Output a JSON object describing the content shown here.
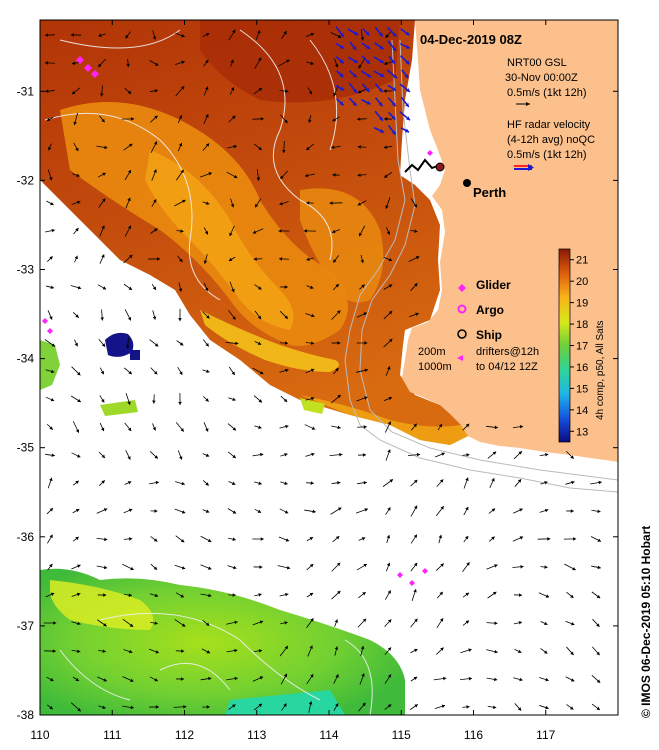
{
  "title": "04-Dec-2019 08Z",
  "gsl_legend": {
    "line1": "NRT00 GSL",
    "line2": "30-Nov 00:00Z",
    "line3": "0.5m/s (1kt 12h)"
  },
  "hf_legend": {
    "line1": "HF radar velocity",
    "line2": "(4-12h avg) noQC",
    "line3": "0.5m/s (1kt 12h)"
  },
  "city_label": "Perth",
  "symbol_legend": {
    "glider": "Glider",
    "argo": "Argo",
    "ship": "Ship",
    "drifters_line1": "drifters@12h",
    "drifters_line2": "to 04/12 12Z"
  },
  "contour_labels": {
    "c200": "200m",
    "c1000": "1000m"
  },
  "colorbar": {
    "title": "4h comp, p50, All Sats",
    "min": 12.5,
    "max": 21.5,
    "ticks": [
      13,
      14,
      15,
      16,
      17,
      18,
      19,
      20,
      21
    ]
  },
  "axes": {
    "lon_min": 110,
    "lon_max": 118,
    "lat_min": -38,
    "lat_max": -30.2,
    "lon_ticks": [
      110,
      111,
      112,
      113,
      114,
      115,
      116,
      117
    ],
    "lat_ticks": [
      -31,
      -32,
      -33,
      -34,
      -35,
      -36,
      -37,
      -38
    ]
  },
  "credit": "© IMOS 06-Dec-2019 05:10 Hobart",
  "colors": {
    "land": "#fbc08c",
    "sst_warm": "#b83a0a",
    "sst_mid": "#e8850f",
    "sst_cool": "#6fc43a",
    "arrow": "#000000",
    "hf_arrow": "#1a1ad0",
    "marker": "#ff22ff"
  }
}
